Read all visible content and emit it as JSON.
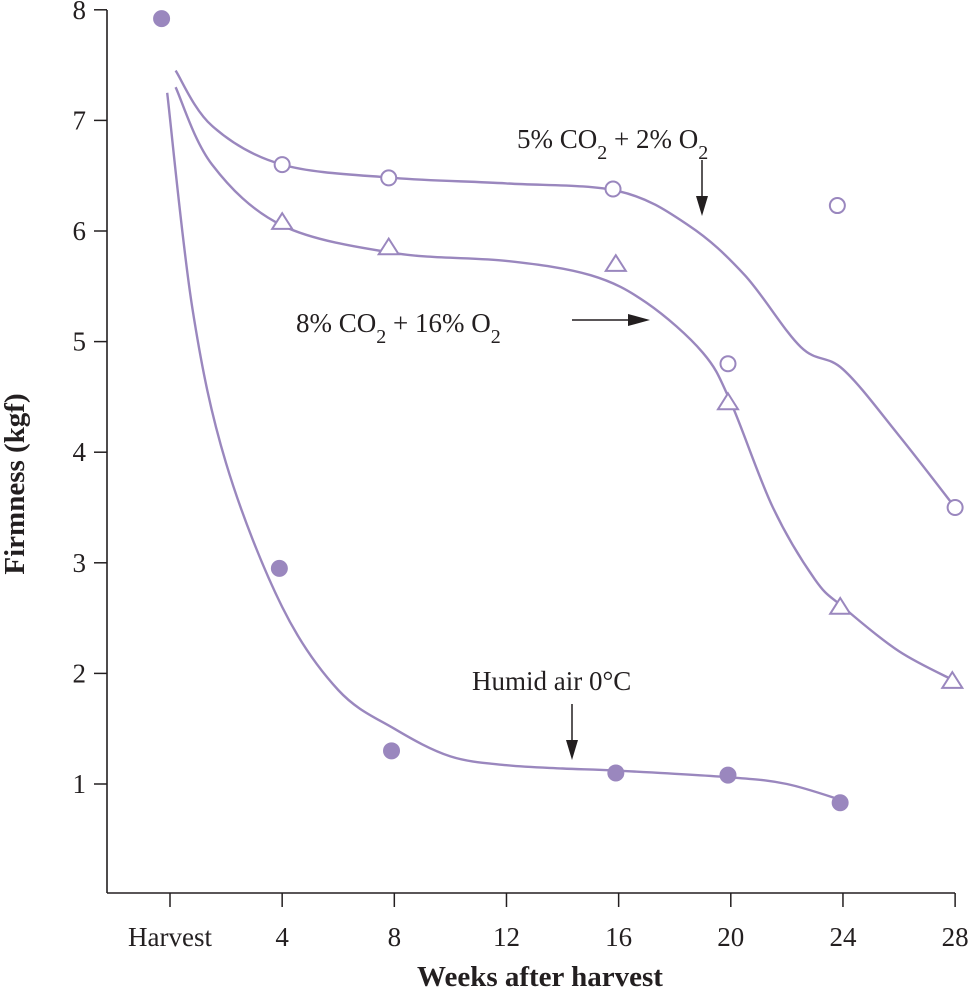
{
  "chart_data": {
    "type": "scatter",
    "xlabel": "Weeks after harvest",
    "ylabel": "Firmness (kgf)",
    "x_ticks": [
      "Harvest",
      "4",
      "8",
      "12",
      "16",
      "20",
      "24",
      "28"
    ],
    "x_tick_values": [
      0,
      4,
      8,
      12,
      16,
      20,
      24,
      28
    ],
    "y_ticks": [
      "1",
      "2",
      "3",
      "4",
      "5",
      "6",
      "7",
      "8"
    ],
    "xlim": [
      -2.3,
      28
    ],
    "ylim": [
      0.2,
      8
    ],
    "grid": false,
    "legend": "none",
    "series": [
      {
        "marker": "open-circle",
        "x": [
          4,
          7.8,
          15.8,
          19.9,
          23.8,
          28
        ],
        "y": [
          6.6,
          6.48,
          6.38,
          4.8,
          6.23,
          3.5
        ],
        "curve": [
          [
            0.2,
            7.45
          ],
          [
            1.5,
            6.95
          ],
          [
            4,
            6.6
          ],
          [
            8,
            6.48
          ],
          [
            12,
            6.43
          ],
          [
            16,
            6.36
          ],
          [
            18.5,
            6.05
          ],
          [
            20.5,
            5.6
          ],
          [
            22.5,
            4.95
          ],
          [
            24,
            4.75
          ],
          [
            26,
            4.15
          ],
          [
            28,
            3.5
          ]
        ],
        "color": "#9a87be"
      },
      {
        "marker": "open-triangle",
        "x": [
          4,
          7.8,
          15.9,
          19.9,
          23.9,
          27.9
        ],
        "y": [
          6.08,
          5.85,
          5.7,
          4.45,
          2.6,
          1.93
        ],
        "curve": [
          [
            0.2,
            7.3
          ],
          [
            1.5,
            6.6
          ],
          [
            4,
            6.05
          ],
          [
            8,
            5.8
          ],
          [
            12,
            5.73
          ],
          [
            15,
            5.6
          ],
          [
            17,
            5.35
          ],
          [
            19,
            4.9
          ],
          [
            20,
            4.45
          ],
          [
            21.5,
            3.5
          ],
          [
            23,
            2.85
          ],
          [
            24,
            2.6
          ],
          [
            26,
            2.2
          ],
          [
            28,
            1.93
          ]
        ],
        "color": "#9a87be"
      },
      {
        "marker": "filled-circle",
        "x": [
          -0.3,
          3.9,
          7.9,
          15.9,
          19.9,
          23.9
        ],
        "y": [
          7.92,
          2.95,
          1.3,
          1.1,
          1.08,
          0.83
        ],
        "curve": [
          [
            -0.1,
            7.25
          ],
          [
            0.8,
            5.3
          ],
          [
            2,
            3.9
          ],
          [
            4,
            2.6
          ],
          [
            6,
            1.85
          ],
          [
            8,
            1.5
          ],
          [
            10,
            1.25
          ],
          [
            12,
            1.17
          ],
          [
            14,
            1.14
          ],
          [
            16,
            1.12
          ],
          [
            20,
            1.06
          ],
          [
            22,
            1.0
          ],
          [
            24,
            0.85
          ]
        ],
        "color": "#9a87be"
      }
    ],
    "annotations": [
      {
        "base": "5% CO",
        "sub": "2",
        "mid": " + 2% O",
        "sub2": "2"
      },
      {
        "base": "8% CO",
        "sub": "2",
        "mid": " + 16% O",
        "sub2": "2"
      },
      {
        "text": "Humid air 0°C"
      }
    ]
  }
}
